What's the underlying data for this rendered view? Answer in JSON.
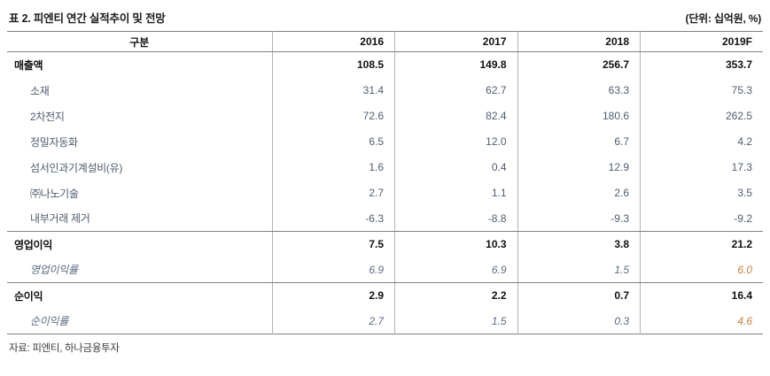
{
  "title": "표 2. 피엔티 연간 실적추이 및 전망",
  "unit_note": "(단위: 십억원, %)",
  "source": "자료: 피엔티, 하나금융투자",
  "colors": {
    "value_text": "#4f5d6d",
    "bold_text": "#111111",
    "italic_text": "#5d6c82",
    "forecast_italic_text": "#c5803d",
    "rule_dark": "#7f7f7f",
    "rule_light": "#b3b3b3"
  },
  "chart_data": {
    "type": "table",
    "title": "표 2. 피엔티 연간 실적추이 및 전망",
    "unit": "(단위: 십억원, %)",
    "header": [
      "구분",
      "2016",
      "2017",
      "2018",
      "2019F"
    ],
    "rows": [
      {
        "label": "매출액",
        "style": "bold",
        "section_end": false,
        "values": [
          "108.5",
          "149.8",
          "256.7",
          "353.7"
        ]
      },
      {
        "label": "소재",
        "style": "sub",
        "section_end": false,
        "values": [
          "31.4",
          "62.7",
          "63.3",
          "75.3"
        ]
      },
      {
        "label": "2차전지",
        "style": "sub",
        "section_end": false,
        "values": [
          "72.6",
          "82.4",
          "180.6",
          "262.5"
        ]
      },
      {
        "label": "정밀자동화",
        "style": "sub",
        "section_end": false,
        "values": [
          "6.5",
          "12.0",
          "6.7",
          "4.2"
        ]
      },
      {
        "label": "섬서인과기계설비(유)",
        "style": "sub",
        "section_end": false,
        "values": [
          "1.6",
          "0.4",
          "12.9",
          "17.3"
        ]
      },
      {
        "label": "㈜나노기술",
        "style": "sub",
        "section_end": false,
        "values": [
          "2.7",
          "1.1",
          "2.6",
          "3.5"
        ]
      },
      {
        "label": "내부거래 제거",
        "style": "sub",
        "section_end": true,
        "values": [
          "-6.3",
          "-8.8",
          "-9.3",
          "-9.2"
        ]
      },
      {
        "label": "영업이익",
        "style": "bold",
        "section_end": false,
        "values": [
          "7.5",
          "10.3",
          "3.8",
          "21.2"
        ]
      },
      {
        "label": "영업이익률",
        "style": "italic",
        "section_end": true,
        "values": [
          "6.9",
          "6.9",
          "1.5",
          "6.0"
        ]
      },
      {
        "label": "순이익",
        "style": "bold",
        "section_end": false,
        "values": [
          "2.9",
          "2.2",
          "0.7",
          "16.4"
        ]
      },
      {
        "label": "순이익률",
        "style": "italic",
        "section_end": false,
        "values": [
          "2.7",
          "1.5",
          "0.3",
          "4.6"
        ]
      }
    ]
  }
}
